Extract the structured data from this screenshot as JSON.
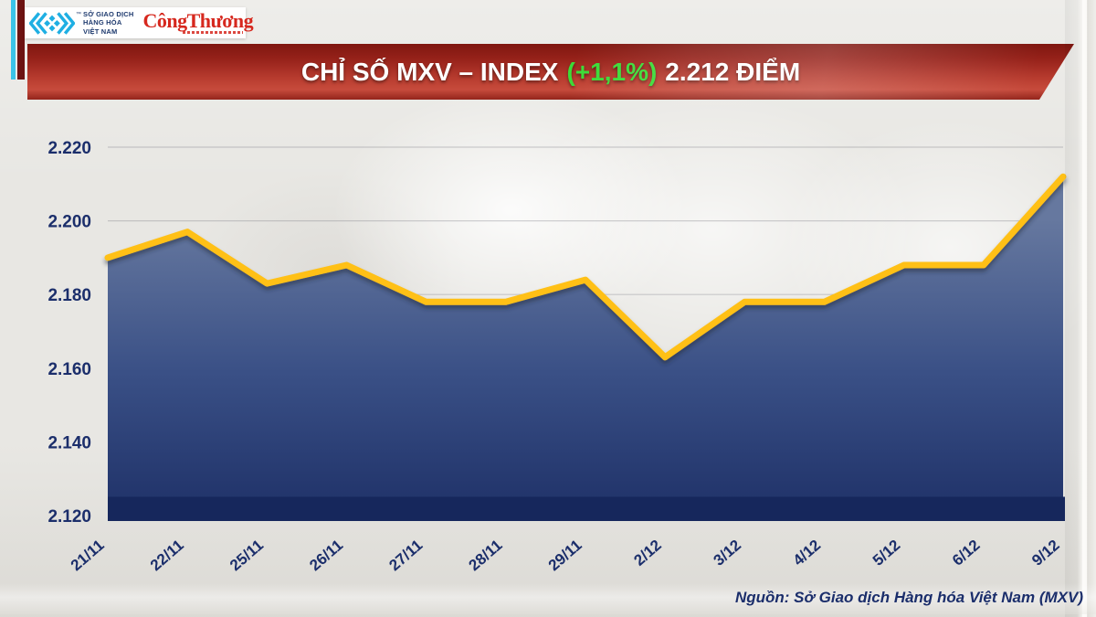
{
  "branding": {
    "mxv_logo": {
      "text_lines": [
        "SỞ GIAO DỊCH",
        "HÀNG HÓA",
        "VIỆT NAM"
      ],
      "trademark": "™",
      "icon_color": "#1FAFE3",
      "text_color": "#1E3A6E"
    },
    "congthuong_logo": {
      "text": "CôngThương",
      "color": "#D6281E"
    }
  },
  "banner": {
    "title_prefix": "CHỈ SỐ MXV – INDEX",
    "title_change": "(+1,1%)",
    "title_suffix": "2.212 ĐIỂM",
    "text_color": "#FFFFFF",
    "change_color": "#3BDC37"
  },
  "footer": {
    "source_label": "Nguồn: Sở Giao dịch Hàng hóa Việt Nam (MXV)"
  },
  "chart_data": {
    "type": "area",
    "title": "CHỈ SỐ MXV – INDEX (+1,1%) 2.212 ĐIỂM",
    "categories": [
      "21/11",
      "22/11",
      "25/11",
      "26/11",
      "27/11",
      "28/11",
      "29/11",
      "2/12",
      "3/12",
      "4/12",
      "5/12",
      "6/12",
      "9/12"
    ],
    "values": [
      2190,
      2197,
      2183,
      2188,
      2178,
      2178,
      2184,
      2163,
      2178,
      2178,
      2188,
      2188,
      2212
    ],
    "xlabel": "",
    "ylabel": "",
    "ylim": [
      2120,
      2220
    ],
    "y_ticks": [
      "2.220",
      "2.200",
      "2.180",
      "2.160",
      "2.140",
      "2.120"
    ],
    "y_tick_values": [
      2220,
      2200,
      2180,
      2160,
      2140,
      2120
    ],
    "grid": true,
    "legend": false,
    "line_color": "#FFC013",
    "area_top_color": "#66789F",
    "area_mid_color": "#3A5086",
    "area_bottom_color": "#1D2F66",
    "axis_bar_color": "#16275C",
    "label_color": "#1B2E6B"
  }
}
